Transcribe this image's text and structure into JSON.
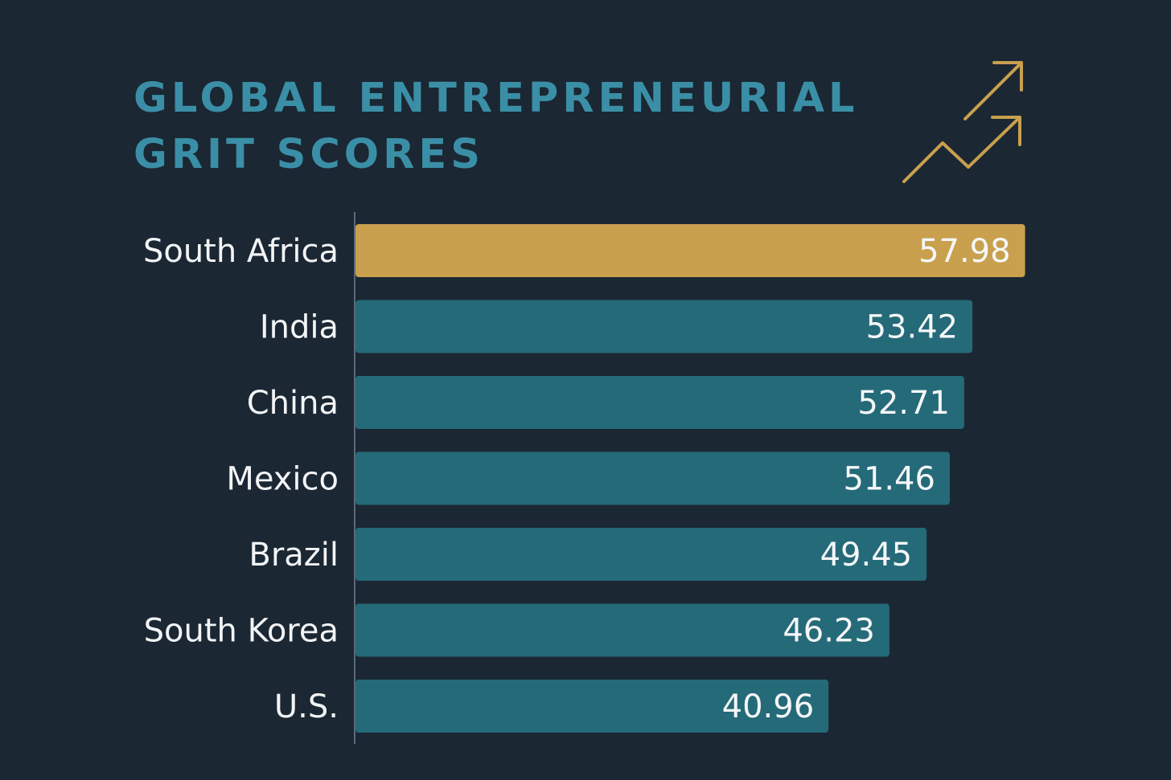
{
  "title_lines": [
    "GLOBAL ENTREPRENEURIAL",
    "GRIT SCORES"
  ],
  "icon": "trend-up-arrows-icon",
  "colors": {
    "background": "#1b2733",
    "title": "#3a8fa6",
    "highlight_bar": "#c8a04e",
    "bar": "#256a78",
    "icon": "#c8a04e",
    "axis": "#5b6a78"
  },
  "chart_data": {
    "type": "bar",
    "orientation": "horizontal",
    "title": "GLOBAL ENTREPRENEURIAL GRIT SCORES",
    "categories": [
      "South Africa",
      "India",
      "China",
      "Mexico",
      "Brazil",
      "South Korea",
      "U.S."
    ],
    "values": [
      57.98,
      53.42,
      52.71,
      51.46,
      49.45,
      46.23,
      40.96
    ],
    "highlighted": "South Africa",
    "data_labels": [
      "57.98",
      "53.42",
      "52.71",
      "51.46",
      "49.45",
      "46.23",
      "40.96"
    ],
    "xlabel": "",
    "ylabel": "",
    "grid": false,
    "legend": "none"
  }
}
